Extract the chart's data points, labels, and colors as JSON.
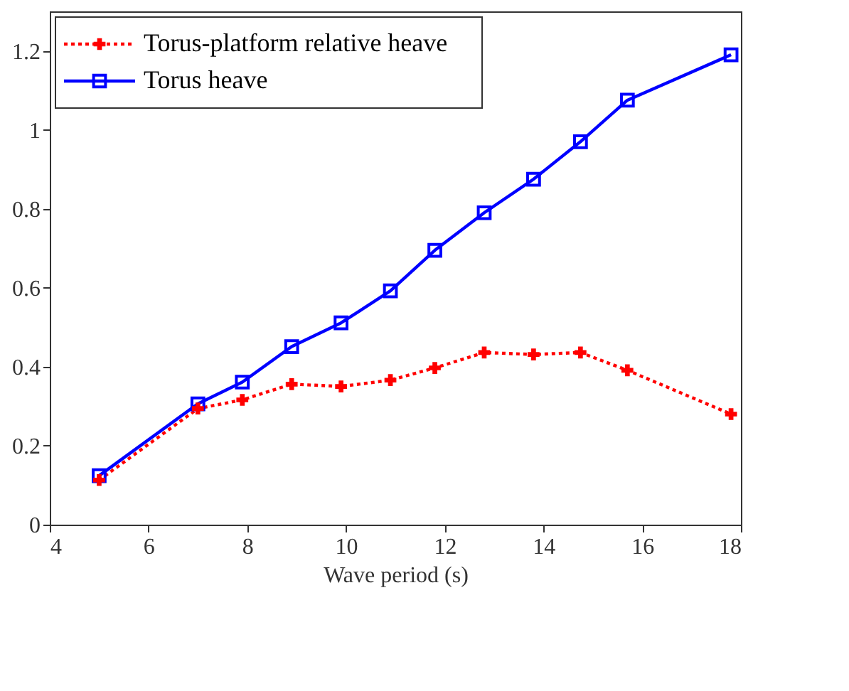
{
  "chart_data": {
    "type": "line",
    "xlabel": "Wave period (s)",
    "xlim": [
      4,
      18
    ],
    "xticks": [
      4,
      6,
      8,
      10,
      12,
      14,
      16,
      18
    ],
    "ylim": [
      0,
      1.3
    ],
    "yticks": [
      0,
      0.2,
      0.4,
      0.6,
      0.8,
      1,
      1.2
    ],
    "grid": false,
    "legend": "top left",
    "series": [
      {
        "name": "Torus-platform relative heave",
        "color": "#ff0000",
        "marker": "cross",
        "line_style": "dotted",
        "x": [
          5,
          7,
          7.9,
          8.9,
          9.9,
          10.9,
          11.8,
          12.8,
          13.8,
          14.75,
          15.7,
          17.8
        ],
        "values": [
          0.113,
          0.294,
          0.316,
          0.356,
          0.35,
          0.366,
          0.397,
          0.436,
          0.431,
          0.436,
          0.391,
          0.28
        ]
      },
      {
        "name": "Torus heave",
        "color": "#0000ff",
        "marker": "square",
        "line_style": "solid",
        "x": [
          5,
          7,
          7.9,
          8.9,
          9.9,
          10.9,
          11.8,
          12.8,
          13.8,
          14.75,
          15.7,
          17.8
        ],
        "values": [
          0.124,
          0.306,
          0.361,
          0.451,
          0.511,
          0.592,
          0.695,
          0.79,
          0.875,
          0.97,
          1.075,
          1.19
        ]
      }
    ]
  }
}
